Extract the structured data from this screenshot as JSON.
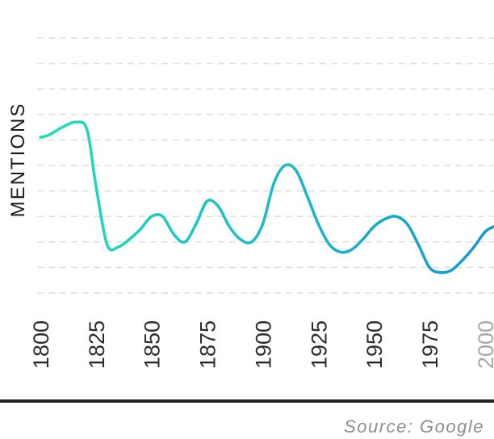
{
  "chart_data": {
    "type": "line",
    "ylabel": "MENTIONS",
    "xlabel": "",
    "title": "",
    "x_ticks": [
      "1800",
      "1825",
      "1850",
      "1875",
      "1900",
      "1925",
      "1950",
      "1975",
      "2000"
    ],
    "muted_ticks": [
      "2000"
    ],
    "xlim": [
      1800,
      2004
    ],
    "ylim": [
      0,
      10
    ],
    "grid": "dashed horizontal",
    "legend": "none",
    "x": [
      1800,
      1804,
      1810,
      1816,
      1821,
      1825,
      1830,
      1835,
      1840,
      1845,
      1850,
      1855,
      1860,
      1865,
      1870,
      1875,
      1880,
      1885,
      1890,
      1895,
      1900,
      1905,
      1910,
      1915,
      1920,
      1925,
      1930,
      1935,
      1940,
      1945,
      1950,
      1955,
      1960,
      1965,
      1970,
      1975,
      1980,
      1985,
      1990,
      1995,
      2000,
      2004
    ],
    "y": [
      6.1,
      6.2,
      6.5,
      6.7,
      6.4,
      4.2,
      1.9,
      1.8,
      2.1,
      2.5,
      3.0,
      3.0,
      2.3,
      2.0,
      2.7,
      3.6,
      3.4,
      2.6,
      2.1,
      2.0,
      2.7,
      4.3,
      5.0,
      4.8,
      3.8,
      2.7,
      1.9,
      1.6,
      1.7,
      2.1,
      2.6,
      2.9,
      3.0,
      2.7,
      1.9,
      1.0,
      0.8,
      0.9,
      1.3,
      1.8,
      2.4,
      2.6
    ],
    "colors": {
      "line_start": "#1fe0b8",
      "line_end": "#1596d6",
      "grid": "#dedede",
      "axis": "#222222",
      "tick": "#2b2b2b",
      "tick_muted": "#a8a8a8"
    }
  },
  "source": "Source: Google"
}
